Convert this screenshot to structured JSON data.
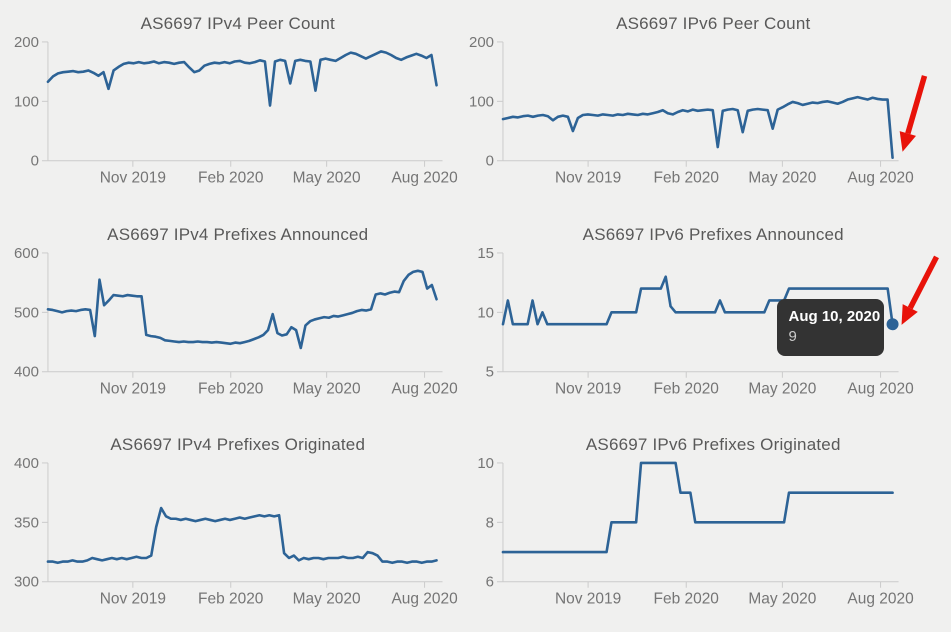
{
  "styles": {
    "background": "#f0f0ef",
    "line_color": "#2d6396",
    "axis_color": "#cbcbcb",
    "tick_label_color": "#757575",
    "title_color": "#595959",
    "tooltip_bg": "#333333",
    "tooltip_date_color": "#ffffff",
    "tooltip_value_color": "#cccccc",
    "arrow_color": "#e8130a",
    "marker_color": "#2d6396"
  },
  "chart_data": [
    {
      "type": "line",
      "title": "AS6697 IPv4 Peer Count",
      "ylim": [
        0,
        200
      ],
      "yticks": [
        0,
        100,
        200
      ],
      "x_ticks": [
        "Nov 2019",
        "Feb 2020",
        "May 2020",
        "Aug 2020"
      ],
      "values": [
        133,
        142,
        147,
        149,
        150,
        151,
        149,
        150,
        152,
        148,
        143,
        149,
        121,
        152,
        158,
        163,
        165,
        164,
        166,
        164,
        165,
        167,
        164,
        166,
        165,
        163,
        165,
        166,
        157,
        149,
        152,
        160,
        163,
        165,
        164,
        166,
        164,
        167,
        168,
        165,
        164,
        166,
        169,
        167,
        93,
        167,
        170,
        168,
        130,
        168,
        170,
        168,
        167,
        118,
        170,
        172,
        170,
        168,
        173,
        178,
        182,
        180,
        176,
        172,
        176,
        180,
        184,
        182,
        178,
        173,
        170,
        174,
        177,
        180,
        177,
        173,
        178,
        127
      ]
    },
    {
      "type": "line",
      "title": "AS6697 IPv6 Peer Count",
      "ylim": [
        0,
        200
      ],
      "yticks": [
        0,
        100,
        200
      ],
      "x_ticks": [
        "Nov 2019",
        "Feb 2020",
        "May 2020",
        "Aug 2020"
      ],
      "arrow": true,
      "values": [
        70,
        72,
        74,
        73,
        75,
        76,
        74,
        76,
        77,
        75,
        68,
        74,
        76,
        74,
        50,
        72,
        77,
        78,
        77,
        76,
        78,
        77,
        76,
        78,
        77,
        79,
        78,
        77,
        79,
        78,
        80,
        82,
        85,
        80,
        78,
        82,
        85,
        83,
        86,
        84,
        85,
        86,
        85,
        23,
        84,
        86,
        87,
        85,
        48,
        84,
        86,
        87,
        86,
        85,
        54,
        86,
        90,
        95,
        99,
        97,
        94,
        96,
        98,
        97,
        99,
        100,
        98,
        96,
        99,
        103,
        105,
        107,
        105,
        103,
        106,
        104,
        103,
        103,
        5
      ]
    },
    {
      "type": "line",
      "title": "AS6697 IPv4 Prefixes Announced",
      "ylim": [
        400,
        600
      ],
      "yticks": [
        400,
        500,
        600
      ],
      "x_ticks": [
        "Nov 2019",
        "Feb 2020",
        "May 2020",
        "Aug 2020"
      ],
      "values": [
        505,
        504,
        502,
        500,
        502,
        503,
        502,
        504,
        505,
        504,
        460,
        555,
        512,
        520,
        529,
        528,
        527,
        529,
        528,
        527,
        527,
        462,
        460,
        459,
        457,
        453,
        452,
        451,
        450,
        451,
        450,
        450,
        451,
        450,
        450,
        449,
        450,
        449,
        448,
        447,
        449,
        448,
        450,
        452,
        455,
        458,
        462,
        470,
        497,
        465,
        461,
        463,
        475,
        470,
        440,
        478,
        485,
        488,
        490,
        492,
        491,
        494,
        493,
        495,
        497,
        499,
        502,
        504,
        503,
        505,
        530,
        532,
        530,
        533,
        535,
        534,
        553,
        563,
        568,
        570,
        568,
        540,
        546,
        522
      ]
    },
    {
      "type": "line",
      "title": "AS6697 IPv6 Prefixes Announced",
      "ylim": [
        5,
        15
      ],
      "yticks": [
        5,
        10,
        15
      ],
      "x_ticks": [
        "Nov 2019",
        "Feb 2020",
        "May 2020",
        "Aug 2020"
      ],
      "arrow": true,
      "end_marker": true,
      "tooltip": {
        "date": "Aug 10, 2020",
        "value": "9"
      },
      "values": [
        9,
        11,
        9,
        9,
        9,
        9,
        11,
        9,
        10,
        9,
        9,
        9,
        9,
        9,
        9,
        9,
        9,
        9,
        9,
        9,
        9,
        9,
        10,
        10,
        10,
        10,
        10,
        10,
        12,
        12,
        12,
        12,
        12,
        13,
        10.5,
        10,
        10,
        10,
        10,
        10,
        10,
        10,
        10,
        10,
        11,
        10,
        10,
        10,
        10,
        10,
        10,
        10,
        10,
        10,
        11,
        11,
        11,
        11,
        12,
        12,
        12,
        12,
        12,
        12,
        12,
        12,
        12,
        12,
        12,
        12,
        12,
        12,
        12,
        12,
        12,
        12,
        12,
        12,
        12,
        9
      ]
    },
    {
      "type": "line",
      "title": "AS6697 IPv4 Prefixes Originated",
      "ylim": [
        300,
        400
      ],
      "yticks": [
        300,
        350,
        400
      ],
      "x_ticks": [
        "Nov 2019",
        "Feb 2020",
        "May 2020",
        "Aug 2020"
      ],
      "values": [
        317,
        317,
        316,
        317,
        317,
        318,
        317,
        317,
        318,
        320,
        319,
        318,
        319,
        320,
        319,
        320,
        319,
        320,
        321,
        320,
        320,
        322,
        346,
        362,
        355,
        353,
        353,
        352,
        353,
        352,
        351,
        352,
        353,
        352,
        351,
        352,
        353,
        352,
        353,
        354,
        353,
        354,
        355,
        356,
        355,
        356,
        355,
        356,
        324,
        320,
        322,
        318,
        320,
        319,
        320,
        320,
        319,
        320,
        320,
        320,
        321,
        320,
        320,
        321,
        320,
        325,
        324,
        322,
        317,
        317,
        316,
        317,
        317,
        316,
        317,
        317,
        316,
        317,
        317,
        318
      ]
    },
    {
      "type": "line",
      "title": "AS6697 IPv6 Prefixes Originated",
      "ylim": [
        6,
        10
      ],
      "yticks": [
        6,
        8,
        10
      ],
      "x_ticks": [
        "Nov 2019",
        "Feb 2020",
        "May 2020",
        "Aug 2020"
      ],
      "values": [
        7,
        7,
        7,
        7,
        7,
        7,
        7,
        7,
        7,
        7,
        7,
        7,
        7,
        7,
        7,
        7,
        7,
        7,
        7,
        7,
        7,
        7,
        8,
        8,
        8,
        8,
        8,
        8,
        10,
        10,
        10,
        10,
        10,
        10,
        10,
        10,
        9,
        9,
        9,
        8,
        8,
        8,
        8,
        8,
        8,
        8,
        8,
        8,
        8,
        8,
        8,
        8,
        8,
        8,
        8,
        8,
        8,
        8,
        9,
        9,
        9,
        9,
        9,
        9,
        9,
        9,
        9,
        9,
        9,
        9,
        9,
        9,
        9,
        9,
        9,
        9,
        9,
        9,
        9,
        9
      ]
    }
  ]
}
